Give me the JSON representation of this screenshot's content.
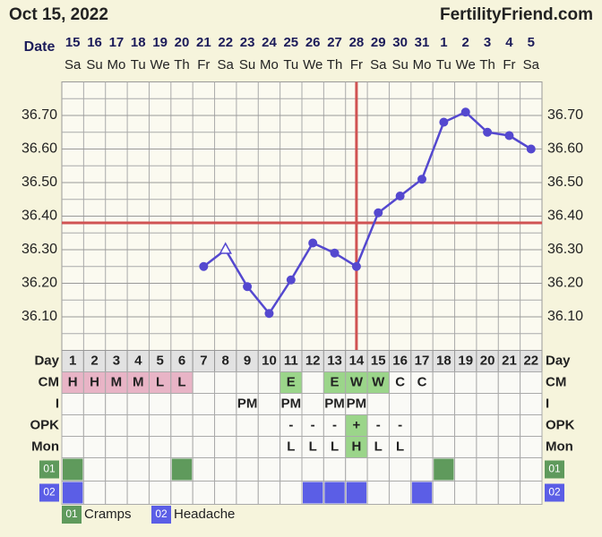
{
  "header": {
    "date": "Oct 15, 2022",
    "site": "FertilityFriend.com"
  },
  "chart_data": {
    "type": "line",
    "date_label": "Date",
    "day_label": "Day",
    "dates": [
      "15",
      "16",
      "17",
      "18",
      "19",
      "20",
      "21",
      "22",
      "23",
      "24",
      "25",
      "26",
      "27",
      "28",
      "29",
      "30",
      "31",
      "1",
      "2",
      "3",
      "4",
      "5"
    ],
    "weekdays": [
      "Sa",
      "Su",
      "Mo",
      "Tu",
      "We",
      "Th",
      "Fr",
      "Sa",
      "Su",
      "Mo",
      "Tu",
      "We",
      "Th",
      "Fr",
      "Sa",
      "Su",
      "Mo",
      "Tu",
      "We",
      "Th",
      "Fr",
      "Sa"
    ],
    "categories": [
      1,
      2,
      3,
      4,
      5,
      6,
      7,
      8,
      9,
      10,
      11,
      12,
      13,
      14,
      15,
      16,
      17,
      18,
      19,
      20,
      21,
      22
    ],
    "values": [
      null,
      null,
      null,
      null,
      null,
      null,
      36.25,
      36.3,
      36.19,
      36.11,
      36.21,
      36.32,
      36.29,
      36.25,
      36.41,
      36.46,
      36.51,
      36.68,
      36.71,
      36.65,
      36.64,
      36.6
    ],
    "open_markers": [
      7
    ],
    "color": "#5448cf",
    "coverline": 36.38,
    "ovulation_day": 14,
    "line_color": "#d05353",
    "ylim": [
      36.0,
      36.8
    ],
    "yticks": [
      {
        "value": 36.1,
        "label": "36.10"
      },
      {
        "value": 36.2,
        "label": "36.20"
      },
      {
        "value": 36.3,
        "label": "36.30"
      },
      {
        "value": 36.4,
        "label": "36.40"
      },
      {
        "value": 36.5,
        "label": "36.50"
      },
      {
        "value": 36.6,
        "label": "36.60"
      },
      {
        "value": 36.7,
        "label": "36.70"
      }
    ],
    "rows": [
      {
        "label": "CM",
        "cells": [
          "H",
          "H",
          "M",
          "M",
          "L",
          "L",
          null,
          null,
          null,
          null,
          "E",
          null,
          "E",
          "W",
          "W",
          "C",
          "C",
          null,
          null,
          null,
          null,
          null
        ],
        "fills": [
          "#e8b4c6",
          "#e8b4c6",
          "#e8b4c6",
          "#e8b4c6",
          "#e8b4c6",
          "#e8b4c6",
          null,
          null,
          null,
          null,
          "#9bd58a",
          null,
          "#9bd58a",
          "#9bd58a",
          "#9bd58a",
          null,
          null,
          null,
          null,
          null,
          null,
          null
        ]
      },
      {
        "label": "I",
        "cells": [
          null,
          null,
          null,
          null,
          null,
          null,
          null,
          null,
          "PM",
          null,
          "PM",
          null,
          "PM",
          "PM",
          null,
          null,
          null,
          null,
          null,
          null,
          null,
          null
        ]
      },
      {
        "label": "OPK",
        "cells": [
          null,
          null,
          null,
          null,
          null,
          null,
          null,
          null,
          null,
          null,
          "-",
          "-",
          "-",
          "+",
          "-",
          "-",
          null,
          null,
          null,
          null,
          null,
          null
        ],
        "fills": [
          null,
          null,
          null,
          null,
          null,
          null,
          null,
          null,
          null,
          null,
          null,
          null,
          null,
          "#9bd58a",
          null,
          null,
          null,
          null,
          null,
          null,
          null,
          null
        ]
      },
      {
        "label": "Mon",
        "cells": [
          null,
          null,
          null,
          null,
          null,
          null,
          null,
          null,
          null,
          null,
          "L",
          "L",
          "L",
          "H",
          "L",
          "L",
          null,
          null,
          null,
          null,
          null,
          null
        ],
        "fills": [
          null,
          null,
          null,
          null,
          null,
          null,
          null,
          null,
          null,
          null,
          null,
          null,
          null,
          "#9bd58a",
          null,
          null,
          null,
          null,
          null,
          null,
          null,
          null
        ]
      }
    ],
    "symptoms": [
      {
        "code": "01",
        "name": "Cramps",
        "color": "#5f9a5c",
        "days": [
          1,
          6,
          18
        ]
      },
      {
        "code": "02",
        "name": "Headache",
        "color": "#5b5ee6",
        "days": [
          1,
          12,
          13,
          14,
          17
        ]
      }
    ]
  }
}
